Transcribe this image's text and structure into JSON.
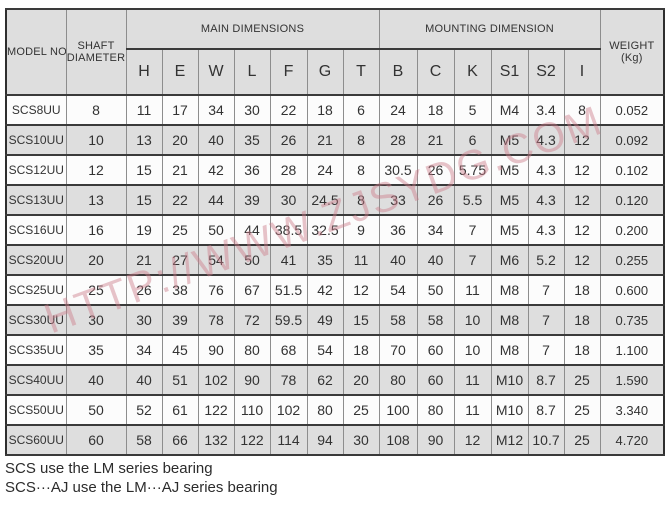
{
  "table": {
    "headers": {
      "model": "MODEL NO.",
      "shaft_line1": "SHAFT",
      "shaft_line2": "DIAMETER",
      "main_group": "MAIN DIMENSIONS",
      "mounting_group": "MOUNTING DIMENSION",
      "weight_line1": "WEIGHT",
      "weight_line2": "(Kg)",
      "main_cols": [
        "H",
        "E",
        "W",
        "L",
        "F",
        "G",
        "T"
      ],
      "mounting_cols": [
        "B",
        "C",
        "K",
        "S1",
        "S2",
        "I"
      ]
    },
    "rows": [
      {
        "model": "SCS8UU",
        "shaft": "8",
        "values": [
          "11",
          "17",
          "34",
          "30",
          "22",
          "18",
          "6",
          "24",
          "18",
          "5",
          "M4",
          "3.4",
          "8"
        ],
        "weight": "0.052"
      },
      {
        "model": "SCS10UU",
        "shaft": "10",
        "values": [
          "13",
          "20",
          "40",
          "35",
          "26",
          "21",
          "8",
          "28",
          "21",
          "6",
          "M5",
          "4.3",
          "12"
        ],
        "weight": "0.092"
      },
      {
        "model": "SCS12UU",
        "shaft": "12",
        "values": [
          "15",
          "21",
          "42",
          "36",
          "28",
          "24",
          "8",
          "30.5",
          "26",
          "5.75",
          "M5",
          "4.3",
          "12"
        ],
        "weight": "0.102"
      },
      {
        "model": "SCS13UU",
        "shaft": "13",
        "values": [
          "15",
          "22",
          "44",
          "39",
          "30",
          "24.5",
          "8",
          "33",
          "26",
          "5.5",
          "M5",
          "4.3",
          "12"
        ],
        "weight": "0.120"
      },
      {
        "model": "SCS16UU",
        "shaft": "16",
        "values": [
          "19",
          "25",
          "50",
          "44",
          "38.5",
          "32.5",
          "9",
          "36",
          "34",
          "7",
          "M5",
          "4.3",
          "12"
        ],
        "weight": "0.200"
      },
      {
        "model": "SCS20UU",
        "shaft": "20",
        "values": [
          "21",
          "27",
          "54",
          "50",
          "41",
          "35",
          "11",
          "40",
          "40",
          "7",
          "M6",
          "5.2",
          "12"
        ],
        "weight": "0.255"
      },
      {
        "model": "SCS25UU",
        "shaft": "25",
        "values": [
          "26",
          "38",
          "76",
          "67",
          "51.5",
          "42",
          "12",
          "54",
          "50",
          "11",
          "M8",
          "7",
          "18"
        ],
        "weight": "0.600"
      },
      {
        "model": "SCS30UU",
        "shaft": "30",
        "values": [
          "30",
          "39",
          "78",
          "72",
          "59.5",
          "49",
          "15",
          "58",
          "58",
          "10",
          "M8",
          "7",
          "18"
        ],
        "weight": "0.735"
      },
      {
        "model": "SCS35UU",
        "shaft": "35",
        "values": [
          "34",
          "45",
          "90",
          "80",
          "68",
          "54",
          "18",
          "70",
          "60",
          "10",
          "M8",
          "7",
          "18"
        ],
        "weight": "1.100"
      },
      {
        "model": "SCS40UU",
        "shaft": "40",
        "values": [
          "40",
          "51",
          "102",
          "90",
          "78",
          "62",
          "20",
          "80",
          "60",
          "11",
          "M10",
          "8.7",
          "25"
        ],
        "weight": "1.590"
      },
      {
        "model": "SCS50UU",
        "shaft": "50",
        "values": [
          "52",
          "61",
          "122",
          "110",
          "102",
          "80",
          "25",
          "100",
          "80",
          "11",
          "M10",
          "8.7",
          "25"
        ],
        "weight": "3.340"
      },
      {
        "model": "SCS60UU",
        "shaft": "60",
        "values": [
          "58",
          "66",
          "132",
          "122",
          "114",
          "94",
          "30",
          "108",
          "90",
          "12",
          "M12",
          "10.7",
          "25"
        ],
        "weight": "4.720"
      }
    ]
  },
  "footer": {
    "line1": "SCS  use the LM series bearing",
    "line2": "SCS···AJ use the LM···AJ series bearing"
  },
  "watermark": "HTTP://WWW.ZJSYDG.COM",
  "colors": {
    "stripe_gray": "#dedede",
    "row_white": "#fcfcfc",
    "border_dark": "#2e2e2e",
    "border_light": "#8d8d8d",
    "watermark_pink": "#cd7d8a"
  }
}
